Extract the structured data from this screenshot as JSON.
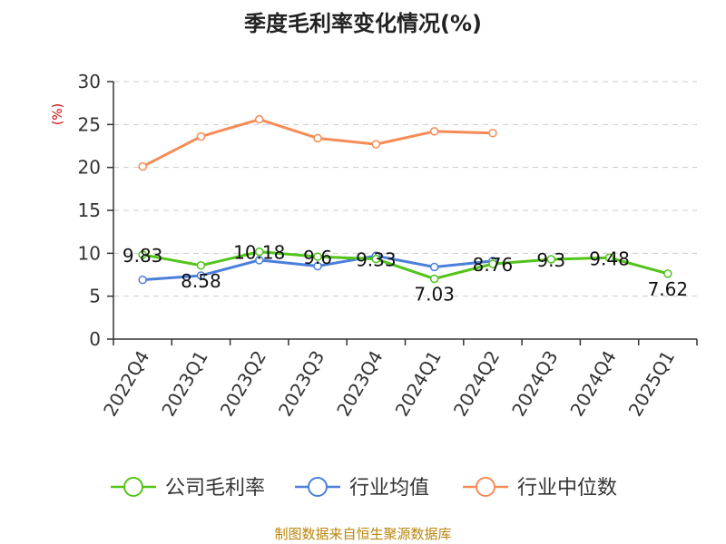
{
  "chart_data": {
    "type": "line",
    "title": "季度毛利率变化情况(%)",
    "unit_label": "(%)",
    "source": "制图数据来自恒生聚源数据库",
    "categories": [
      "2022Q4",
      "2023Q1",
      "2023Q2",
      "2023Q3",
      "2023Q4",
      "2024Q1",
      "2024Q2",
      "2024Q3",
      "2024Q4",
      "2025Q1"
    ],
    "ylim": [
      0,
      30
    ],
    "yticks": [
      0,
      5,
      10,
      15,
      20,
      25,
      30
    ],
    "grid": true,
    "legend_position": "bottom",
    "series": [
      {
        "name": "公司毛利率",
        "color": "#52c41a",
        "labeled": true,
        "values": [
          9.83,
          8.58,
          10.18,
          9.6,
          9.33,
          7.03,
          8.76,
          9.3,
          9.48,
          7.62
        ],
        "label_texts": [
          "9.83",
          "8.58",
          "10.18",
          "9.6",
          "9.33",
          "7.03",
          "8.76",
          "9.3",
          "9.48",
          "7.62"
        ]
      },
      {
        "name": "行业均值",
        "color": "#4a7fdb",
        "labeled": false,
        "values": [
          6.9,
          7.4,
          9.2,
          8.5,
          9.7,
          8.4,
          9.1,
          null,
          null,
          null
        ]
      },
      {
        "name": "行业中位数",
        "color": "#f58c55",
        "labeled": false,
        "values": [
          20.1,
          23.6,
          25.6,
          23.4,
          22.7,
          24.2,
          24.0,
          null,
          null,
          null
        ]
      }
    ]
  }
}
